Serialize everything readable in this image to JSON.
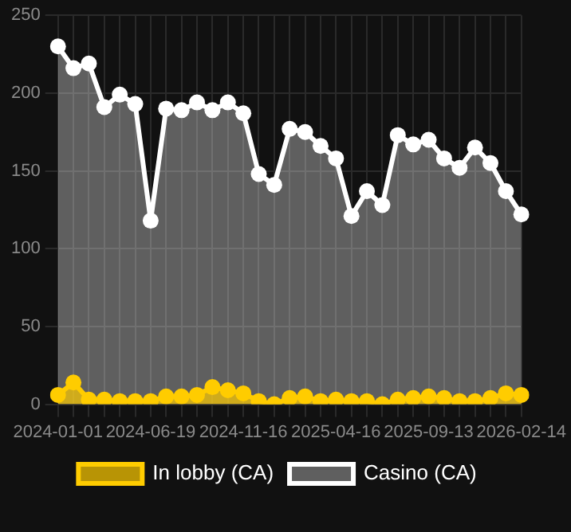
{
  "chart_data": {
    "type": "area",
    "categories": [
      "2024-01-01",
      null,
      null,
      null,
      null,
      null,
      "2024-06-19",
      null,
      null,
      null,
      null,
      null,
      "2024-11-16",
      null,
      null,
      null,
      null,
      null,
      "2025-04-16",
      null,
      null,
      null,
      null,
      null,
      "2025-09-13",
      null,
      null,
      null,
      null,
      null,
      "2026-02-14"
    ],
    "series": [
      {
        "name": "In lobby (CA)",
        "color": "#ffcc00",
        "values": [
          6,
          14,
          3,
          3,
          2,
          2,
          2,
          5,
          5,
          6,
          11,
          9,
          7,
          2,
          0,
          4,
          5,
          2,
          3,
          2,
          2,
          0,
          3,
          4,
          5,
          4,
          2,
          2,
          4,
          7,
          6
        ]
      },
      {
        "name": "Casino (CA)",
        "color": "#ffffff",
        "values": [
          230,
          216,
          219,
          191,
          199,
          193,
          118,
          190,
          189,
          194,
          189,
          194,
          187,
          148,
          141,
          177,
          175,
          166,
          158,
          121,
          137,
          128,
          173,
          167,
          170,
          158,
          152,
          165,
          155,
          137,
          122
        ]
      }
    ],
    "ylim": [
      0,
      250
    ],
    "yticks": [
      0,
      50,
      100,
      150,
      200,
      250
    ],
    "grid": true,
    "legend": "bottom",
    "marker": "circle"
  }
}
